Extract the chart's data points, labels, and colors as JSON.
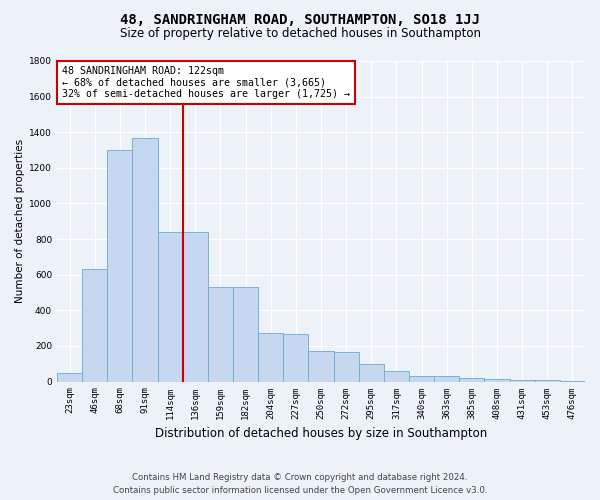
{
  "title": "48, SANDRINGHAM ROAD, SOUTHAMPTON, SO18 1JJ",
  "subtitle": "Size of property relative to detached houses in Southampton",
  "xlabel": "Distribution of detached houses by size in Southampton",
  "ylabel": "Number of detached properties",
  "bar_color": "#c5d8ef",
  "bar_edge_color": "#6aaad4",
  "background_color": "#edf2f9",
  "grid_color": "#ffffff",
  "property_line_color": "#cc0000",
  "property_line_x": 4.5,
  "annotation_text": "48 SANDRINGHAM ROAD: 122sqm\n← 68% of detached houses are smaller (3,665)\n32% of semi-detached houses are larger (1,725) →",
  "annotation_box_facecolor": "#ffffff",
  "annotation_box_edgecolor": "#cc0000",
  "footer_line1": "Contains HM Land Registry data © Crown copyright and database right 2024.",
  "footer_line2": "Contains public sector information licensed under the Open Government Licence v3.0.",
  "categories": [
    "23sqm",
    "46sqm",
    "68sqm",
    "91sqm",
    "114sqm",
    "136sqm",
    "159sqm",
    "182sqm",
    "204sqm",
    "227sqm",
    "250sqm",
    "272sqm",
    "295sqm",
    "317sqm",
    "340sqm",
    "363sqm",
    "385sqm",
    "408sqm",
    "431sqm",
    "453sqm",
    "476sqm"
  ],
  "values": [
    50,
    630,
    1300,
    1370,
    840,
    840,
    530,
    530,
    270,
    265,
    170,
    168,
    100,
    60,
    32,
    30,
    20,
    14,
    10,
    7,
    4
  ],
  "ylim": [
    0,
    1800
  ],
  "yticks": [
    0,
    200,
    400,
    600,
    800,
    1000,
    1200,
    1400,
    1600,
    1800
  ],
  "figsize": [
    6.0,
    5.0
  ],
  "dpi": 100,
  "title_fontsize": 10,
  "subtitle_fontsize": 8.5,
  "xlabel_fontsize": 8.5,
  "ylabel_fontsize": 7.5,
  "tick_fontsize": 6.5,
  "annotation_fontsize": 7.2,
  "footer_fontsize": 6.2
}
